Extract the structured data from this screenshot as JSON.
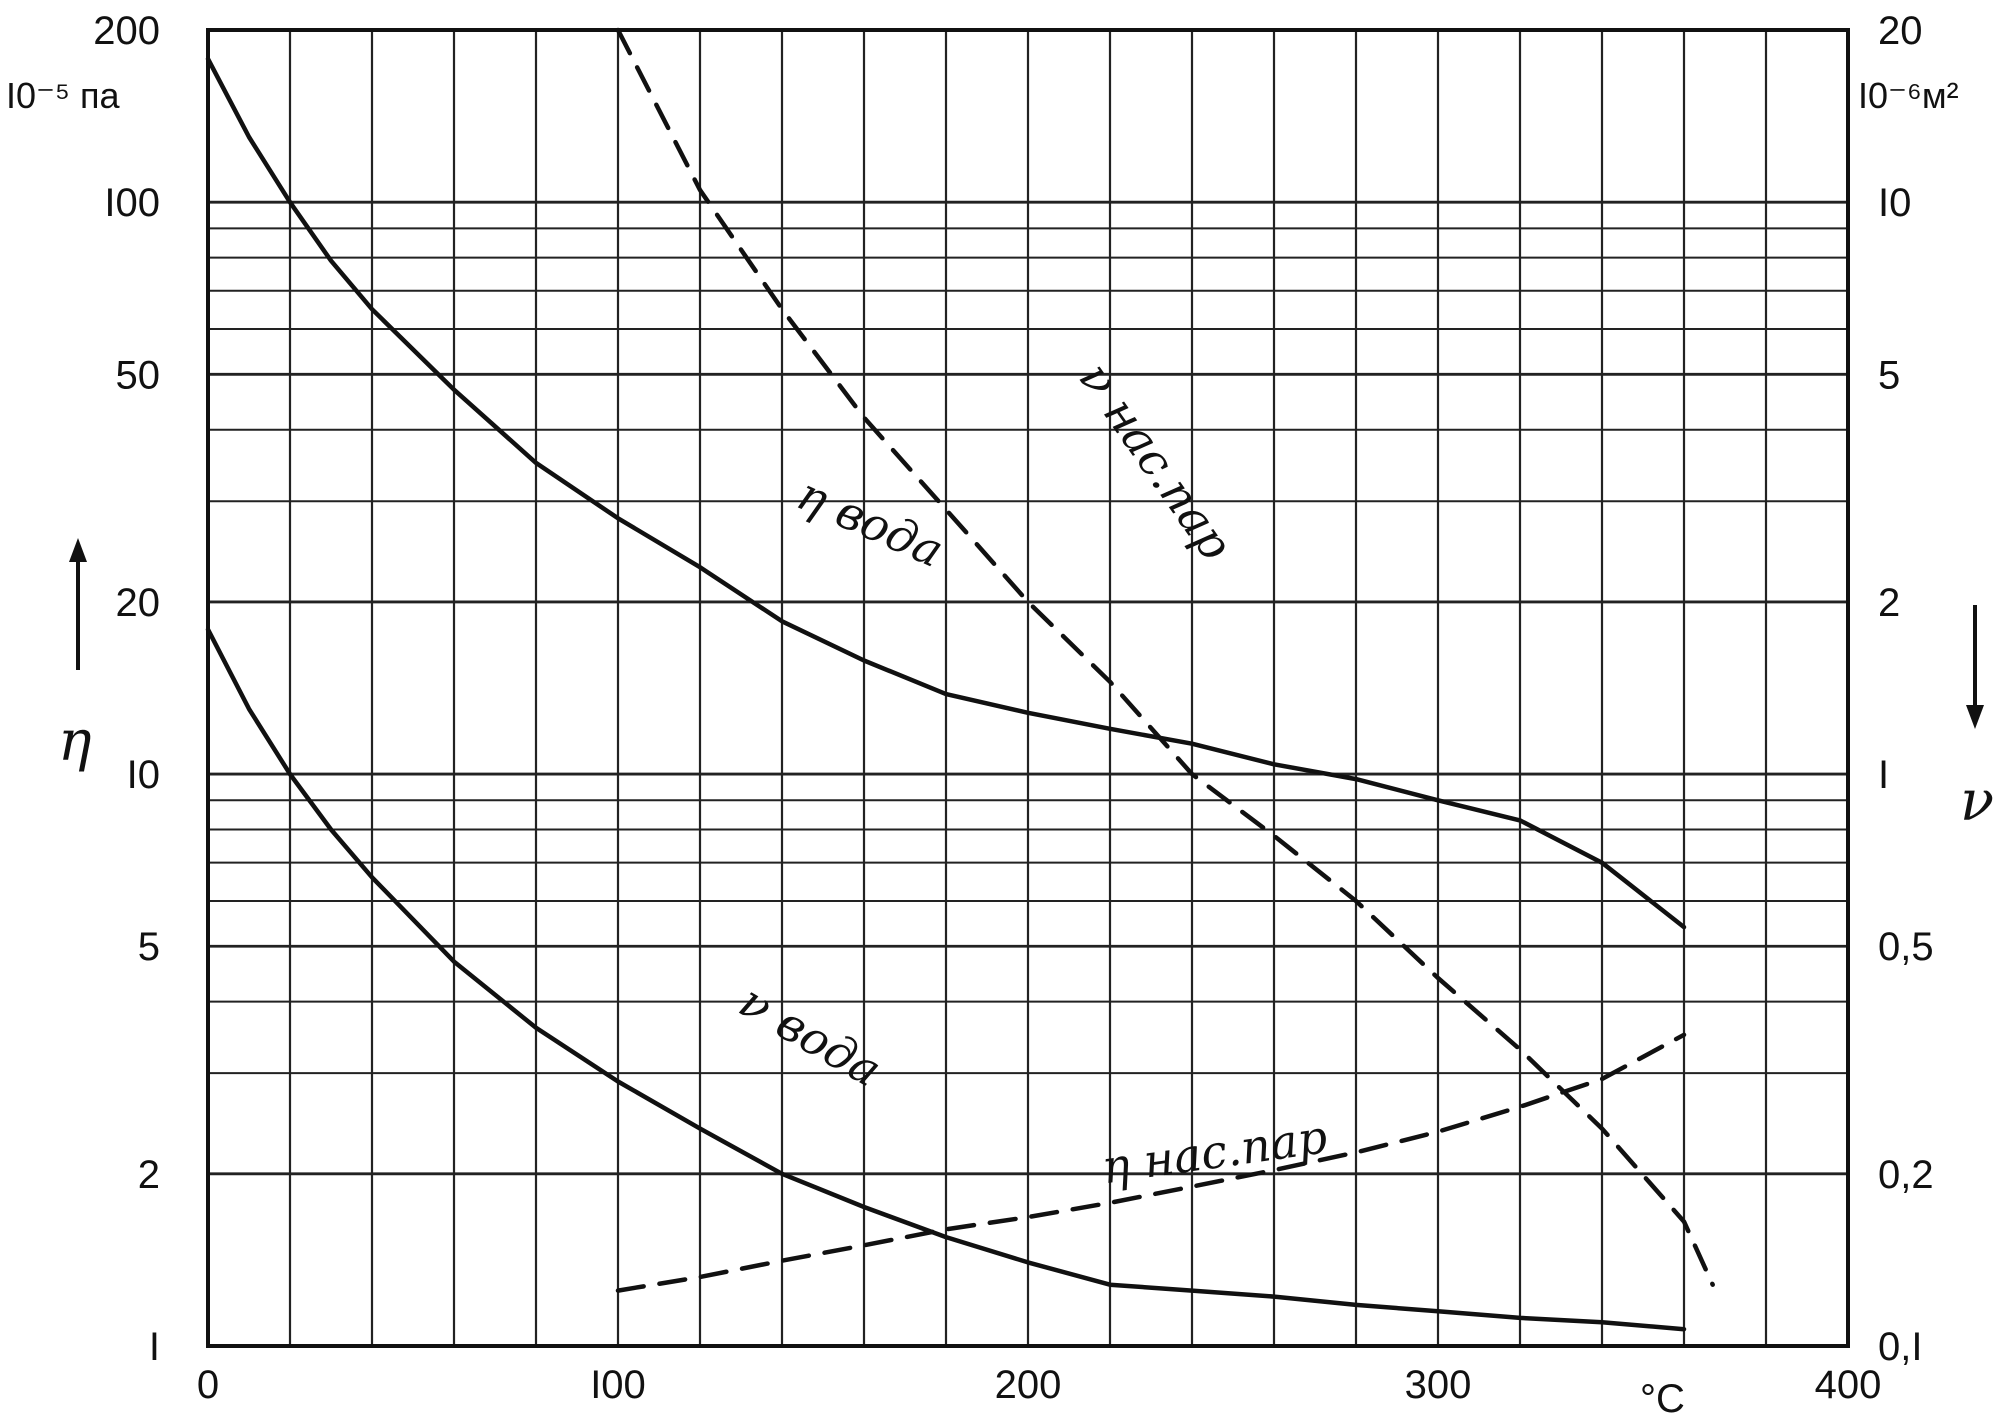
{
  "chart_data": {
    "type": "line",
    "x_axis": {
      "range": [
        0,
        400
      ],
      "ticks": [
        {
          "value": 0,
          "label": "0"
        },
        {
          "value": 100,
          "label": "I00"
        },
        {
          "value": 200,
          "label": "200"
        },
        {
          "value": 300,
          "label": "300"
        },
        {
          "value": 400,
          "label": "400"
        }
      ],
      "unit_label": "°C",
      "grid_step": 20
    },
    "left_axis": {
      "symbol": "η",
      "scale": "log",
      "range": [
        1,
        200
      ],
      "unit_label": "I0⁻⁵ па",
      "ticks": [
        {
          "value": 200,
          "label": "200"
        },
        {
          "value": 100,
          "label": "I00"
        },
        {
          "value": 50,
          "label": "50"
        },
        {
          "value": 20,
          "label": "20"
        },
        {
          "value": 10,
          "label": "I0"
        },
        {
          "value": 5,
          "label": "5"
        },
        {
          "value": 2,
          "label": "2"
        },
        {
          "value": 1,
          "label": "I"
        }
      ]
    },
    "right_axis": {
      "symbol": "ν",
      "scale": "log",
      "range": [
        0.1,
        20
      ],
      "unit_label": "I0⁻⁶м²",
      "ticks": [
        {
          "value": 20,
          "label": "20"
        },
        {
          "value": 10,
          "label": "I0"
        },
        {
          "value": 5,
          "label": "5"
        },
        {
          "value": 2,
          "label": "2"
        },
        {
          "value": 1,
          "label": "I"
        },
        {
          "value": 0.5,
          "label": "0,5"
        },
        {
          "value": 0.2,
          "label": "0,2"
        },
        {
          "value": 0.1,
          "label": "0,I"
        }
      ]
    },
    "grid": true,
    "series": [
      {
        "name": "η вода",
        "axis": "left",
        "style": "solid",
        "x": [
          0,
          10,
          20,
          30,
          40,
          60,
          80,
          100,
          120,
          140,
          160,
          180,
          200,
          220,
          240,
          260,
          280,
          300,
          320,
          340,
          360
        ],
        "y": [
          178,
          130,
          100,
          79,
          65,
          47,
          35,
          28,
          23,
          18.5,
          15.8,
          13.8,
          12.8,
          12.0,
          11.3,
          10.4,
          9.8,
          9.0,
          8.3,
          7.0,
          5.4
        ]
      },
      {
        "name": "ν вода",
        "axis": "right",
        "style": "solid",
        "x": [
          0,
          10,
          20,
          30,
          40,
          60,
          80,
          100,
          120,
          140,
          160,
          180,
          200,
          220,
          240,
          260,
          280,
          300,
          320,
          340,
          360
        ],
        "y": [
          1.79,
          1.3,
          1.0,
          0.8,
          0.66,
          0.47,
          0.36,
          0.29,
          0.24,
          0.2,
          0.175,
          0.155,
          0.14,
          0.128,
          0.125,
          0.122,
          0.118,
          0.115,
          0.112,
          0.11,
          0.107
        ]
      },
      {
        "name": "ν нас.пар",
        "axis": "right",
        "style": "dashed",
        "x": [
          100,
          120,
          140,
          160,
          180,
          200,
          220,
          240,
          260,
          280,
          300,
          320,
          340,
          360,
          367
        ],
        "y": [
          20,
          10.5,
          6.5,
          4.2,
          2.9,
          2.0,
          1.45,
          1.0,
          0.78,
          0.6,
          0.44,
          0.33,
          0.24,
          0.165,
          0.128
        ]
      },
      {
        "name": "η нас.пар",
        "axis": "left",
        "style": "dashed",
        "x": [
          100,
          120,
          140,
          160,
          180,
          200,
          220,
          240,
          260,
          280,
          300,
          320,
          340,
          360
        ],
        "y": [
          1.25,
          1.32,
          1.41,
          1.5,
          1.6,
          1.68,
          1.78,
          1.9,
          2.03,
          2.18,
          2.37,
          2.62,
          2.93,
          3.5
        ]
      }
    ],
    "labels": [
      {
        "text": "η вода",
        "x": 160,
        "y_left": 26,
        "angle": 24
      },
      {
        "text": "ν вода",
        "x": 145,
        "y_left": 3.3,
        "angle": 30
      },
      {
        "text": "ν нас.пар",
        "x": 228,
        "y_left": 34,
        "angle": 55
      },
      {
        "text": "η нас.пар",
        "x": 246,
        "y_left": 2.05,
        "angle": -8
      }
    ]
  }
}
